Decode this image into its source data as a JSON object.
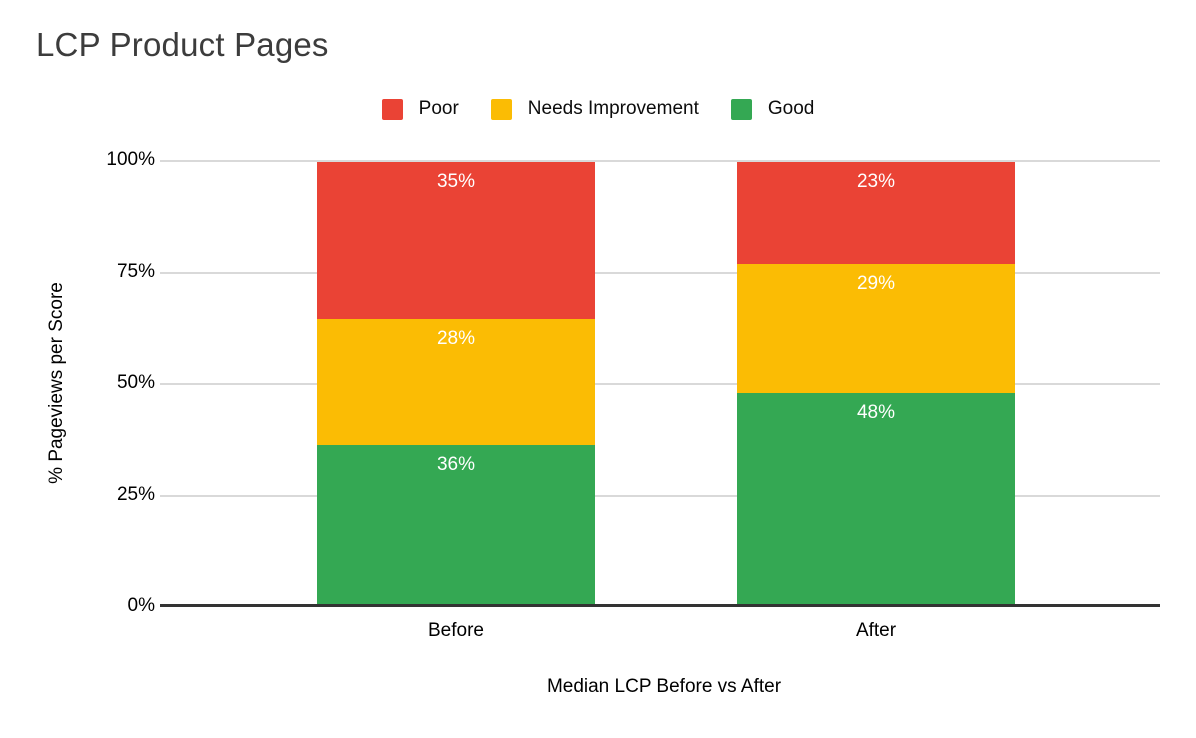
{
  "chart": {
    "title": "LCP Product Pages",
    "title_color": "#3c3c3c"
  },
  "chart_data": {
    "type": "bar",
    "stacked": true,
    "percent_stacked": true,
    "title": "LCP Product Pages",
    "xlabel": "Median LCP Before vs After",
    "ylabel": "% Pageviews per Score",
    "categories": [
      "Before",
      "After"
    ],
    "series": [
      {
        "name": "Good",
        "color": "#34A853",
        "values": [
          36,
          48
        ]
      },
      {
        "name": "Needs Improvement",
        "color": "#FBBC04",
        "values": [
          28,
          29
        ]
      },
      {
        "name": "Poor",
        "color": "#EA4335",
        "values": [
          35,
          23
        ]
      }
    ],
    "legend_order": [
      "Poor",
      "Needs Improvement",
      "Good"
    ],
    "legend_position": "top",
    "data_label_format": "{value}%",
    "data_label_color": "#ffffff",
    "y_ticks": [
      "0%",
      "25%",
      "50%",
      "75%",
      "100%"
    ],
    "y_tick_values": [
      0,
      25,
      50,
      75,
      100
    ],
    "ylim": [
      0,
      100
    ],
    "grid": true,
    "grid_color": "#d9d9d9",
    "axis_color": "#333333"
  }
}
